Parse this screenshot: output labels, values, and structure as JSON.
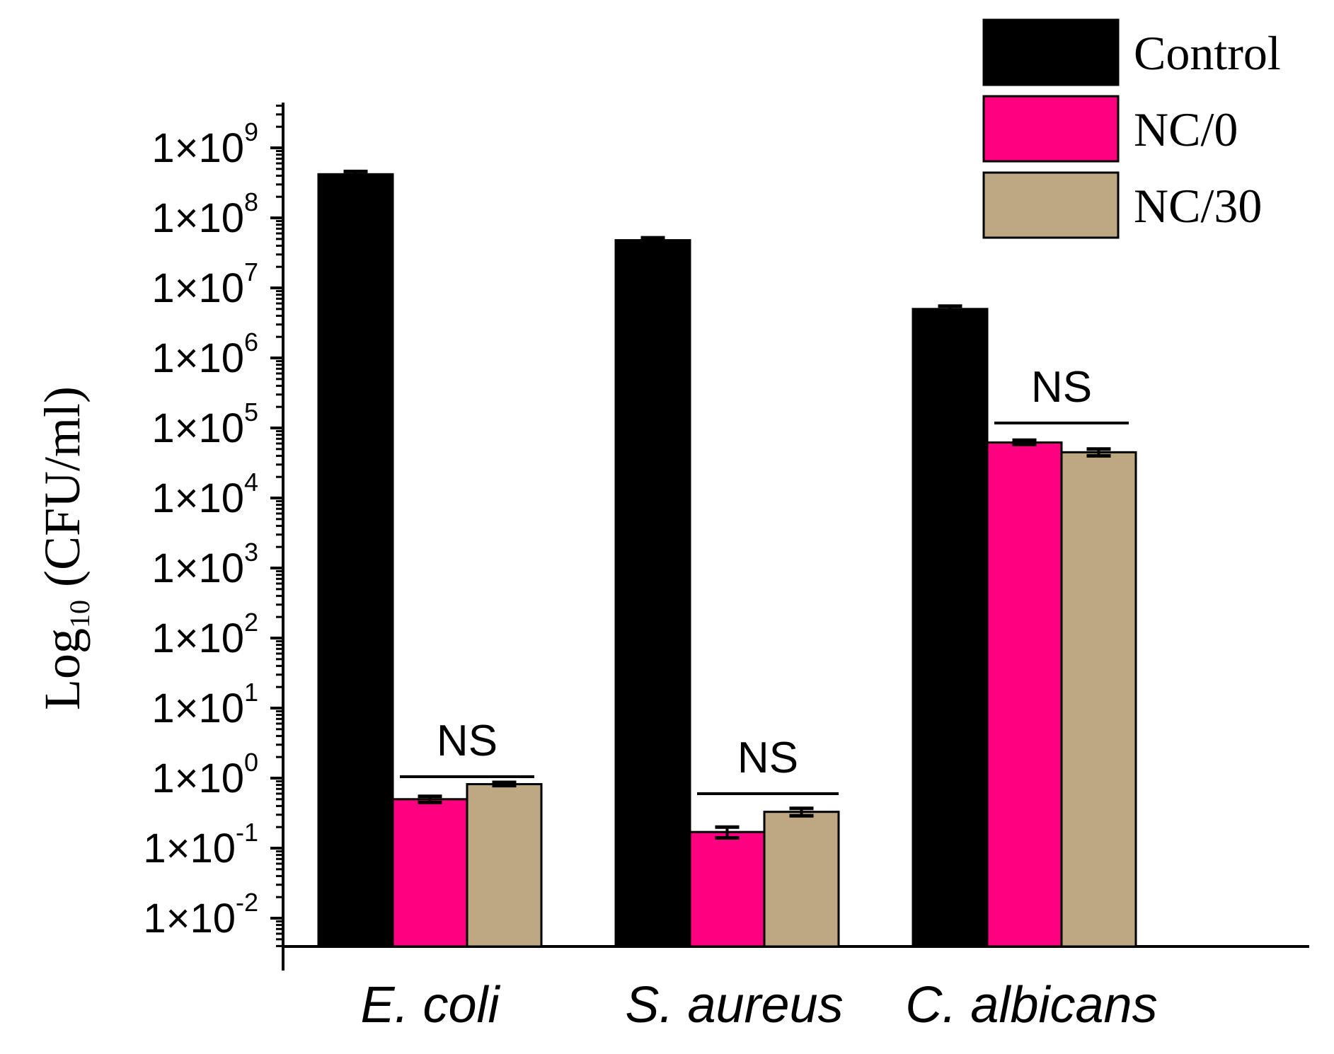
{
  "chart_data": {
    "type": "bar",
    "ylabel_main": "Log",
    "ylabel_sub": "10",
    "ylabel_rest": " (CFU/ml)",
    "yscale": "log",
    "ylim": [
      0.0025,
      100000000000
    ],
    "yticks": [
      {
        "value": 0.01,
        "mantissa": "1×10",
        "exp": "-2"
      },
      {
        "value": 0.1,
        "mantissa": "1×10",
        "exp": "-1"
      },
      {
        "value": 1,
        "mantissa": "1×10",
        "exp": "0"
      },
      {
        "value": 10,
        "mantissa": "1×10",
        "exp": "1"
      },
      {
        "value": 100,
        "mantissa": "1×10",
        "exp": "2"
      },
      {
        "value": 1000,
        "mantissa": "1×10",
        "exp": "3"
      },
      {
        "value": 10000,
        "mantissa": "1×10",
        "exp": "4"
      },
      {
        "value": 100000,
        "mantissa": "1×10",
        "exp": "5"
      },
      {
        "value": 1000000,
        "mantissa": "1×10",
        "exp": "6"
      },
      {
        "value": 10000000,
        "mantissa": "1×10",
        "exp": "7"
      },
      {
        "value": 100000000,
        "mantissa": "1×10",
        "exp": "8"
      },
      {
        "value": 1000000000,
        "mantissa": "1×10",
        "exp": "9"
      }
    ],
    "categories": [
      "E. coli",
      "S. aureus",
      "C. albicans"
    ],
    "series": [
      {
        "name": "Control",
        "color": "#000000",
        "values": [
          420000000,
          48000000,
          5000000
        ],
        "errors": [
          [
            390000000,
            460000000
          ],
          [
            45000000,
            52000000
          ],
          [
            4700000,
            5500000
          ]
        ]
      },
      {
        "name": "NC/0",
        "color": "#ff0080",
        "values": [
          0.5,
          0.17,
          62000
        ],
        "errors": [
          [
            0.45,
            0.55
          ],
          [
            0.14,
            0.2
          ],
          [
            58000,
            67000
          ]
        ]
      },
      {
        "name": "NC/30",
        "color": "#bea882",
        "values": [
          0.82,
          0.33,
          45000
        ],
        "errors": [
          [
            0.78,
            0.87
          ],
          [
            0.29,
            0.37
          ],
          [
            40000,
            50000
          ]
        ]
      }
    ],
    "annotations": [
      {
        "text": "NS",
        "category": 0
      },
      {
        "text": "NS",
        "category": 1
      },
      {
        "text": "NS",
        "category": 2
      }
    ],
    "legend": "top-right",
    "grid": false
  }
}
